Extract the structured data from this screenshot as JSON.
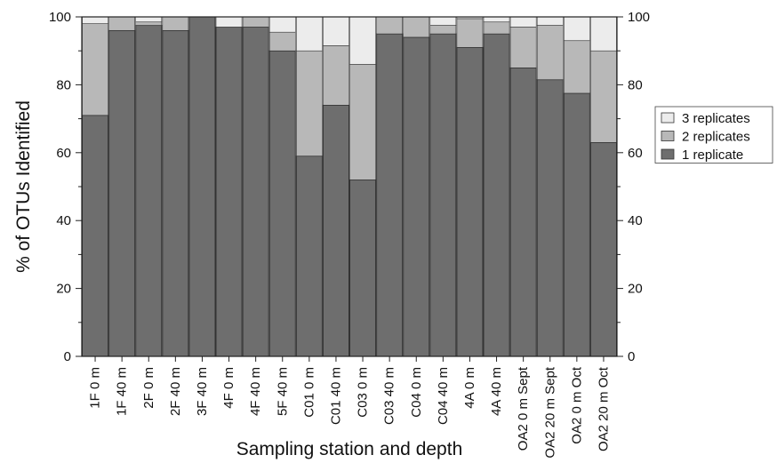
{
  "chart_data": {
    "type": "bar",
    "stacked": true,
    "categories": [
      "1F 0 m",
      "1F 40 m",
      "2F 0 m",
      "2F 40 m",
      "3F 40 m",
      "4F 0 m",
      "4F 40 m",
      "5F 40 m",
      "C01 0 m",
      "C01 40 m",
      "C03 0 m",
      "C03 40 m",
      "C04 0 m",
      "C04 40 m",
      "4A 0 m",
      "4A 40 m",
      "OA2 0 m Sept",
      "OA2 20 m Sept",
      "OA2 0 m Oct",
      "OA2 20 m Oct"
    ],
    "series": [
      {
        "name": "1 replicate",
        "color": "#6e6e6e",
        "values": [
          71,
          96,
          97.5,
          96,
          100,
          97,
          97,
          90,
          59,
          74,
          52,
          95,
          94,
          95,
          91,
          95,
          85,
          81.5,
          77.5,
          63
        ]
      },
      {
        "name": "2 replicates",
        "color": "#b8b8b8",
        "values": [
          27,
          4,
          1,
          4,
          0,
          0,
          3,
          5.5,
          31,
          17.5,
          34,
          5,
          6,
          2.5,
          8.5,
          3.5,
          12,
          16,
          15.5,
          27
        ]
      },
      {
        "name": "3 replicates",
        "color": "#ececec",
        "values": [
          2,
          0,
          1.5,
          0,
          0,
          3,
          0,
          4.5,
          10,
          8.5,
          14,
          0,
          0,
          2.5,
          0.5,
          1.5,
          3,
          2.5,
          7,
          10
        ]
      }
    ],
    "xlabel": "Sampling station and depth",
    "ylabel": "% of OTUs Identified",
    "ylim": [
      0,
      100
    ],
    "yticks": [
      "0",
      "20",
      "40",
      "60",
      "80",
      "100"
    ],
    "legend_position": "right",
    "legend_order": [
      "3 replicates",
      "2 replicates",
      "1 replicate"
    ]
  }
}
